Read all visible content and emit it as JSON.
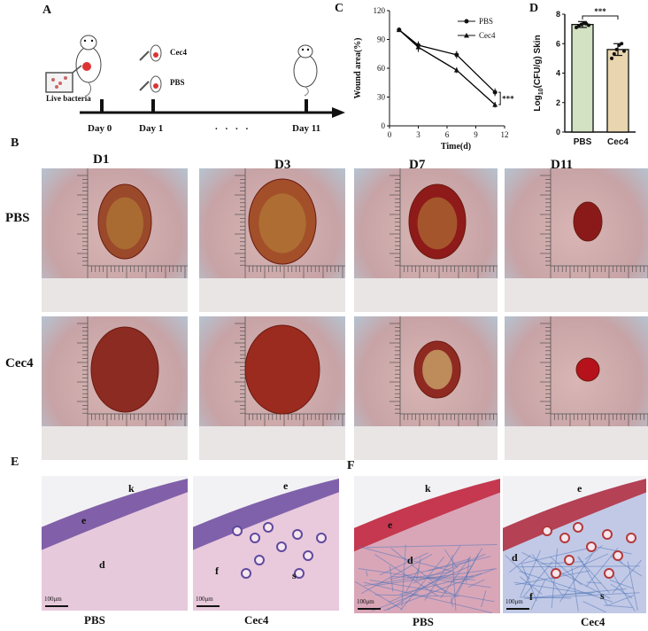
{
  "panels": {
    "A": "A",
    "B": "B",
    "C": "C",
    "D": "D",
    "E": "E",
    "F": "F"
  },
  "timeline": {
    "day0": "Day 0",
    "day1": "Day 1",
    "dots": ". . . .",
    "day11": "Day 11",
    "live_bacteria": "Live bacteria",
    "cec4": "Cec4",
    "pbs": "PBS"
  },
  "chart_c": {
    "chart_data": {
      "type": "line",
      "x": [
        1,
        3,
        7,
        11
      ],
      "series": [
        {
          "name": "PBS",
          "values": [
            100,
            84,
            74,
            35
          ],
          "errors": [
            1,
            4,
            4,
            4
          ]
        },
        {
          "name": "Cec4",
          "values": [
            100,
            82,
            58,
            22
          ],
          "errors": [
            1,
            5,
            3,
            3
          ]
        }
      ],
      "xlabel": "Time(d)",
      "ylabel": "Wound area(%)",
      "xlim": [
        0,
        12
      ],
      "ylim": [
        0,
        120
      ],
      "xticks": [
        "0",
        "3",
        "6",
        "9",
        "12"
      ],
      "yticks": [
        "0",
        "30",
        "60",
        "90",
        "120"
      ],
      "annotation": "***",
      "legend": "top-right",
      "colors": {
        "PBS": "#000000",
        "Cec4": "#000000"
      }
    }
  },
  "chart_d": {
    "chart_data": {
      "type": "bar",
      "categories": [
        "PBS",
        "Cec4"
      ],
      "values": [
        7.3,
        5.6
      ],
      "errors": [
        0.2,
        0.4
      ],
      "points": [
        [
          7.1,
          7.2,
          7.3,
          7.4,
          7.35,
          7.25
        ],
        [
          5.0,
          5.3,
          5.6,
          5.9,
          6.0,
          5.5
        ]
      ],
      "ylabel_main": "Log",
      "ylabel_sub": "10",
      "ylabel_rest": "(CFU/g) Skin",
      "ylim": [
        0,
        8
      ],
      "yticks": [
        "0",
        "2",
        "4",
        "6",
        "8"
      ],
      "annotation": "***",
      "colors": {
        "PBS": "#d2e2c2",
        "Cec4": "#e9d6ae"
      }
    }
  },
  "gallery": {
    "cols": [
      "D1",
      "D3",
      "D7",
      "D11"
    ],
    "rows": [
      "PBS",
      "Cec4"
    ]
  },
  "histo": {
    "pbs": "PBS",
    "cec4": "Cec4",
    "scale": "100μm",
    "k": "k",
    "e": "e",
    "d": "d",
    "f": "f",
    "s": "s"
  }
}
